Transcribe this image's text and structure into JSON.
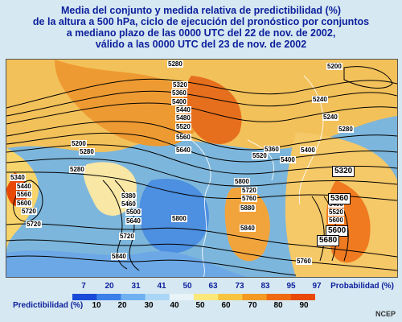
{
  "title": {
    "lines": [
      "Media del conjunto y medida relativa de predictibilidad (%)",
      "de la altura a 500 hPa, ciclo de ejecución del pronóstico por conjuntos",
      "a mediano plazo de las 0000 UTC del 22 de nov. de 2002,",
      "válido a las 0000 UTC del 23 de nov. de 2002"
    ]
  },
  "map": {
    "contour_labels": [
      "5280",
      "5320",
      "5360",
      "5400",
      "5440",
      "5480",
      "5520",
      "5560",
      "5600",
      "5640",
      "5200",
      "5240",
      "5340",
      "5380",
      "5460",
      "5500",
      "5720",
      "5760",
      "5800",
      "5840",
      "5880",
      "5680"
    ],
    "box_labels": [
      "5320",
      "5360",
      "5600",
      "5680"
    ]
  },
  "legend": {
    "probability_title": "Probabilidad (%)",
    "predictability_title": "Predictibilidad (%)",
    "probability_ticks": [
      "7",
      "20",
      "31",
      "41",
      "50",
      "63",
      "73",
      "83",
      "95",
      "97"
    ],
    "predictability_ticks": [
      "10",
      "20",
      "30",
      "40",
      "50",
      "60",
      "70",
      "80",
      "90"
    ],
    "colors": [
      "#1a4bd8",
      "#3b80e8",
      "#6fb1f0",
      "#a9d6f6",
      "#e8f3f8",
      "#fbe87a",
      "#f7c440",
      "#f39a22",
      "#ef6a10",
      "#e84a06"
    ]
  },
  "credit": "NCEP"
}
